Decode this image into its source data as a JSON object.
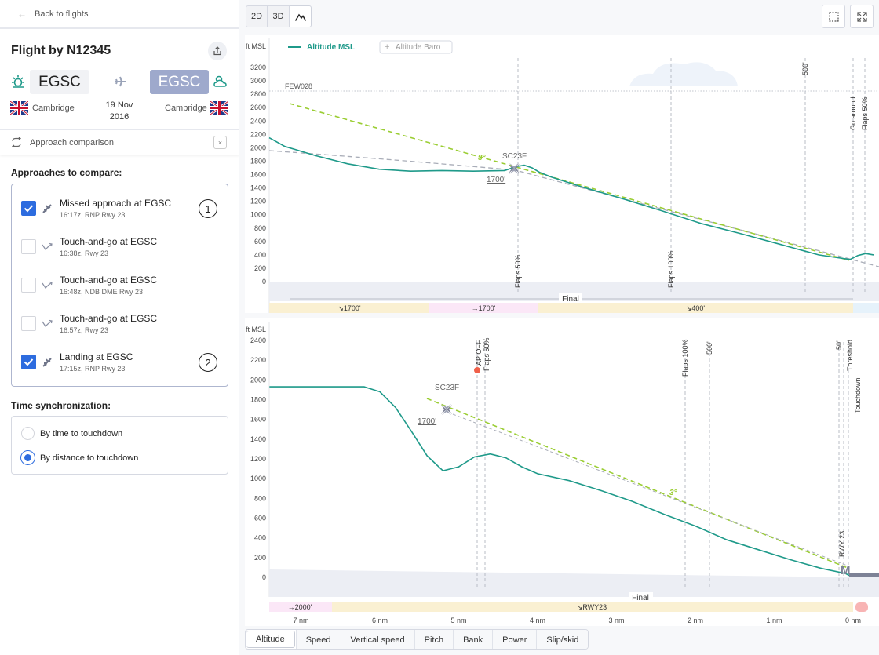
{
  "nav": {
    "back_label": "Back to flights"
  },
  "flight": {
    "title": "Flight by N12345",
    "origin": {
      "code": "EGSC",
      "city": "Cambridge"
    },
    "destination": {
      "code": "EGSC",
      "city": "Cambridge"
    },
    "date_line1": "19 Nov",
    "date_line2": "2016"
  },
  "comparison": {
    "label": "Approach comparison",
    "close": "×"
  },
  "approaches": {
    "heading": "Approaches to compare:",
    "items": [
      {
        "name": "Missed approach at EGSC",
        "sub": "16:17z, RNP Rwy 23",
        "checked": true,
        "num": "1"
      },
      {
        "name": "Touch-and-go at EGSC",
        "sub": "16:38z, Rwy 23",
        "checked": false,
        "num": ""
      },
      {
        "name": "Touch-and-go at EGSC",
        "sub": "16:48z, NDB DME Rwy 23",
        "checked": false,
        "num": ""
      },
      {
        "name": "Touch-and-go at EGSC",
        "sub": "16:57z, Rwy 23",
        "checked": false,
        "num": ""
      },
      {
        "name": "Landing at EGSC",
        "sub": "17:15z, RNP Rwy 23",
        "checked": true,
        "num": "2"
      }
    ]
  },
  "sync": {
    "heading": "Time synchronization:",
    "options": [
      {
        "label": "By time to touchdown",
        "selected": false
      },
      {
        "label": "By distance to touchdown",
        "selected": true
      }
    ]
  },
  "view_modes": [
    "2D",
    "3D"
  ],
  "tabs": [
    "Altitude",
    "Speed",
    "Vertical speed",
    "Pitch",
    "Bank",
    "Power",
    "Slip/skid"
  ],
  "active_tab": "Altitude",
  "colors": {
    "accent": "#2d6cdf",
    "series": "#1f9a8a",
    "glide": "#9acd32",
    "badge": "#9ea9cc"
  },
  "chart_data": [
    {
      "type": "line",
      "ylabel": "ft MSL",
      "ylim": [
        0,
        3200
      ],
      "yticks": [
        0,
        200,
        400,
        600,
        800,
        1000,
        1200,
        1400,
        1600,
        1800,
        2000,
        2200,
        2400,
        2600,
        2800,
        3000,
        3200
      ],
      "legend": [
        {
          "name": "Altitude MSL",
          "active": true
        },
        {
          "name": "Altitude Baro",
          "active": false
        }
      ],
      "cloud_label": "FEW028",
      "cloud_ft": 2800,
      "glide_label": "3°",
      "fix": {
        "name": "SC23F",
        "alt_label": "1700'"
      },
      "events": [
        "Flaps 50%",
        "Flaps 100%",
        "500'",
        "Go around",
        "Flaps 50%"
      ],
      "phase": "Final",
      "segments": [
        "↘1700'",
        "→1700'",
        "↘400'"
      ],
      "series": [
        {
          "name": "Altitude MSL",
          "x": [
            0,
            20,
            60,
            100,
            140,
            180,
            220,
            260,
            300,
            315,
            325,
            335,
            345,
            360,
            400,
            450,
            500,
            550,
            600,
            650,
            700,
            740,
            750,
            760,
            770
          ],
          "y": [
            2150,
            2020,
            1880,
            1760,
            1680,
            1650,
            1660,
            1650,
            1660,
            1720,
            1740,
            1700,
            1630,
            1560,
            1410,
            1240,
            1060,
            870,
            720,
            560,
            400,
            330,
            390,
            420,
            400
          ]
        }
      ]
    },
    {
      "type": "line",
      "ylabel": "ft MSL",
      "ylim": [
        0,
        2400
      ],
      "yticks": [
        0,
        200,
        400,
        600,
        800,
        1000,
        1200,
        1400,
        1600,
        1800,
        2000,
        2200,
        2400
      ],
      "xticks": [
        "7 nm",
        "6 nm",
        "5 nm",
        "4 nm",
        "3 nm",
        "2 nm",
        "1 nm",
        "0 nm"
      ],
      "glide_label": "3°",
      "fix": {
        "name": "SC23F",
        "alt_label": "1700'"
      },
      "events": [
        "AP OFF",
        "Flaps 50%",
        "Flaps 100%",
        "500'",
        "50'",
        "Threshold",
        "Touchdown",
        "RWY 23"
      ],
      "phase": "Final",
      "segments": [
        "→2000'",
        "↘RWY23"
      ],
      "runway_label": "M",
      "series": [
        {
          "name": "Altitude MSL",
          "x": [
            7.4,
            7.0,
            6.5,
            6.2,
            6.0,
            5.8,
            5.6,
            5.4,
            5.2,
            5.0,
            4.8,
            4.6,
            4.4,
            4.2,
            4.0,
            3.6,
            3.2,
            2.8,
            2.4,
            2.0,
            1.6,
            1.2,
            0.8,
            0.4,
            0.1,
            0.05,
            0
          ],
          "y": [
            1930,
            1930,
            1930,
            1930,
            1880,
            1720,
            1480,
            1230,
            1080,
            1120,
            1220,
            1250,
            1210,
            1120,
            1050,
            980,
            880,
            770,
            640,
            520,
            380,
            280,
            180,
            90,
            40,
            20,
            30
          ]
        }
      ]
    }
  ]
}
